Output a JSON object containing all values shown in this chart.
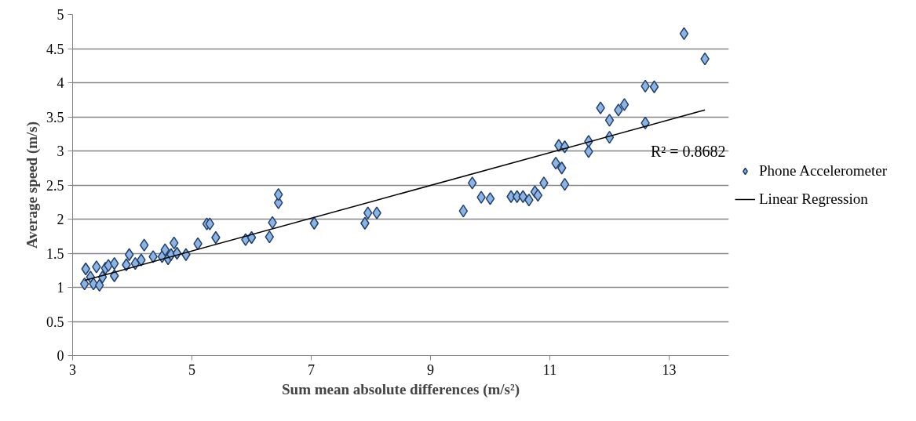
{
  "chart_data": {
    "type": "scatter",
    "xlabel": "Sum mean absolute differences (m/s²)",
    "ylabel": "Average speed (m/s)",
    "xlim": [
      3,
      14
    ],
    "xticks": [
      3,
      5,
      7,
      9,
      11,
      13
    ],
    "ylim": [
      0,
      5
    ],
    "yticks": [
      0,
      0.5,
      1,
      1.5,
      2,
      2.5,
      3,
      3.5,
      4,
      4.5,
      5
    ],
    "grid": "y",
    "legend": "right",
    "marker": "diamond",
    "annotations": [
      "R² = 0.8682"
    ],
    "series": [
      {
        "name": "Phone Accelerometer",
        "color": "#8db3e2",
        "x": [
          3.2,
          3.22,
          3.3,
          3.35,
          3.4,
          3.45,
          3.5,
          3.55,
          3.6,
          3.7,
          3.7,
          3.9,
          3.95,
          4.05,
          4.15,
          4.2,
          4.35,
          4.5,
          4.55,
          4.6,
          4.65,
          4.7,
          4.75,
          4.9,
          5.1,
          5.25,
          5.3,
          5.4,
          5.9,
          6.0,
          6.3,
          6.35,
          6.45,
          6.45,
          7.05,
          7.9,
          7.95,
          8.1,
          9.55,
          9.7,
          9.85,
          10.0,
          10.35,
          10.45,
          10.55,
          10.65,
          10.75,
          10.8,
          10.9,
          11.1,
          11.15,
          11.2,
          11.25,
          11.25,
          11.65,
          11.65,
          11.85,
          12.0,
          12.0,
          12.15,
          12.25,
          12.6,
          12.6,
          12.75,
          13.25,
          13.6
        ],
        "values": [
          1.05,
          1.27,
          1.15,
          1.05,
          1.3,
          1.03,
          1.15,
          1.28,
          1.32,
          1.17,
          1.35,
          1.33,
          1.48,
          1.35,
          1.4,
          1.62,
          1.45,
          1.45,
          1.55,
          1.42,
          1.48,
          1.65,
          1.5,
          1.48,
          1.64,
          1.93,
          1.93,
          1.73,
          1.7,
          1.73,
          1.74,
          1.95,
          2.24,
          2.36,
          1.94,
          1.94,
          2.09,
          2.09,
          2.12,
          2.53,
          2.32,
          2.3,
          2.33,
          2.33,
          2.33,
          2.28,
          2.4,
          2.35,
          2.53,
          2.82,
          3.08,
          2.75,
          3.06,
          2.51,
          3.14,
          2.99,
          3.63,
          3.45,
          3.2,
          3.6,
          3.68,
          3.95,
          3.41,
          3.94,
          4.72,
          4.35
        ]
      },
      {
        "name": "Linear Regression",
        "color": "#000000",
        "type": "line",
        "marker": "none",
        "x": [
          3.2,
          13.6
        ],
        "values": [
          1.1,
          3.6
        ]
      }
    ]
  }
}
